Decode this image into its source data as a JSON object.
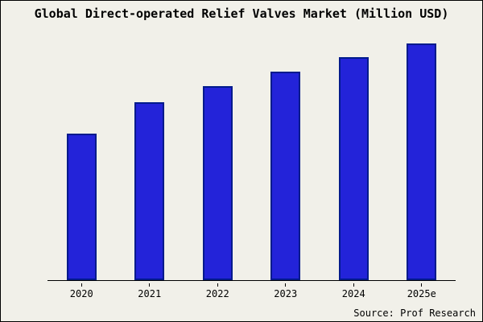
{
  "chart_data": {
    "type": "bar",
    "title": "Global Direct-operated Relief Valves Market (Million USD)",
    "categories": [
      "2020",
      "2021",
      "2022",
      "2023",
      "2024",
      "2025e"
    ],
    "values": [
      62,
      75,
      82,
      88,
      94,
      100
    ],
    "xlabel": "",
    "ylabel": "",
    "ylim": [
      0,
      105
    ],
    "grid": false,
    "legend": false,
    "y_axis_visible": false,
    "note_units": "relative index, tallest bar (2025e) = 100; no y-axis labels shown"
  },
  "source": {
    "text": "Source: Prof Research"
  },
  "colors": {
    "background": "#f1f0e9",
    "bar_fill": "#2323d9",
    "bar_border": "#001a8c",
    "axis": "#000000",
    "frame_border": "#000000"
  }
}
